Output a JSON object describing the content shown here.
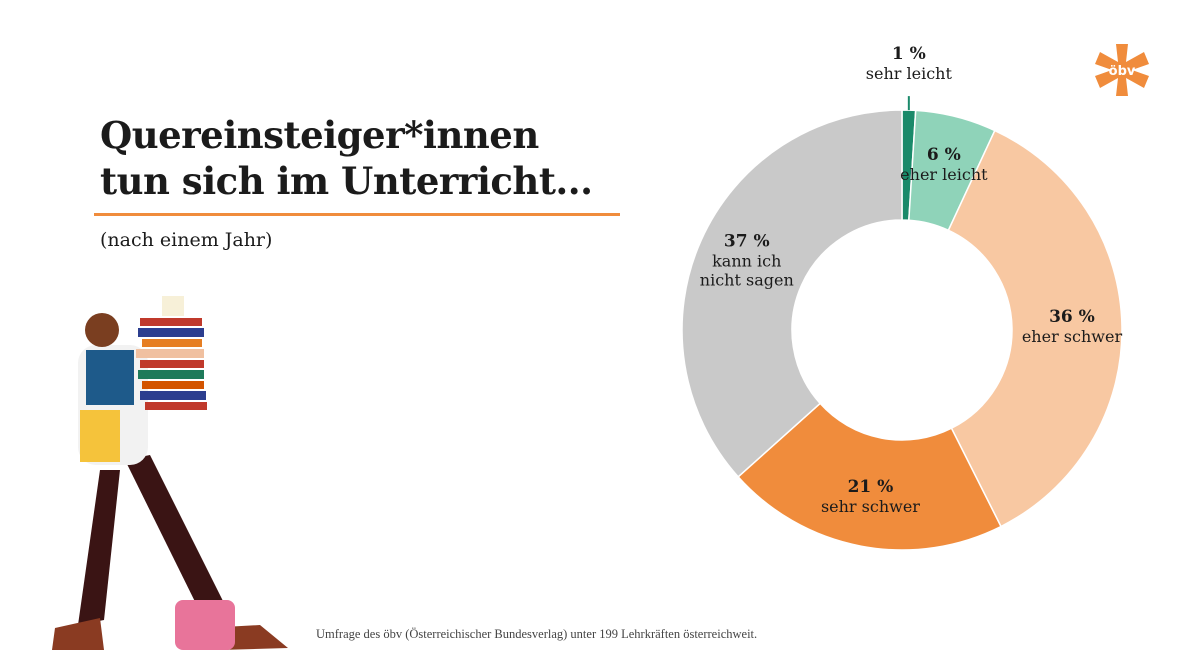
{
  "chart_data": {
    "type": "pie",
    "donut": true,
    "title": "Quereinsteiger*innen tun sich im Unterricht...",
    "subtitle": "(nach einem Jahr)",
    "categories": [
      "sehr leicht",
      "eher leicht",
      "eher schwer",
      "sehr schwer",
      "kann ich nicht sagen"
    ],
    "values": [
      1,
      6,
      36,
      21,
      37
    ],
    "value_labels": [
      "1 %",
      "6 %",
      "36 %",
      "21 %",
      "37 %"
    ],
    "colors": [
      "#1a8a6a",
      "#8fd3b9",
      "#f8c8a2",
      "#f08c3c",
      "#c9c9c9"
    ]
  },
  "footnote": "Umfrage des öbv (Österreichischer Bundesverlag) unter 199 Lehrkräften österreichweit.",
  "logo": "öbv"
}
